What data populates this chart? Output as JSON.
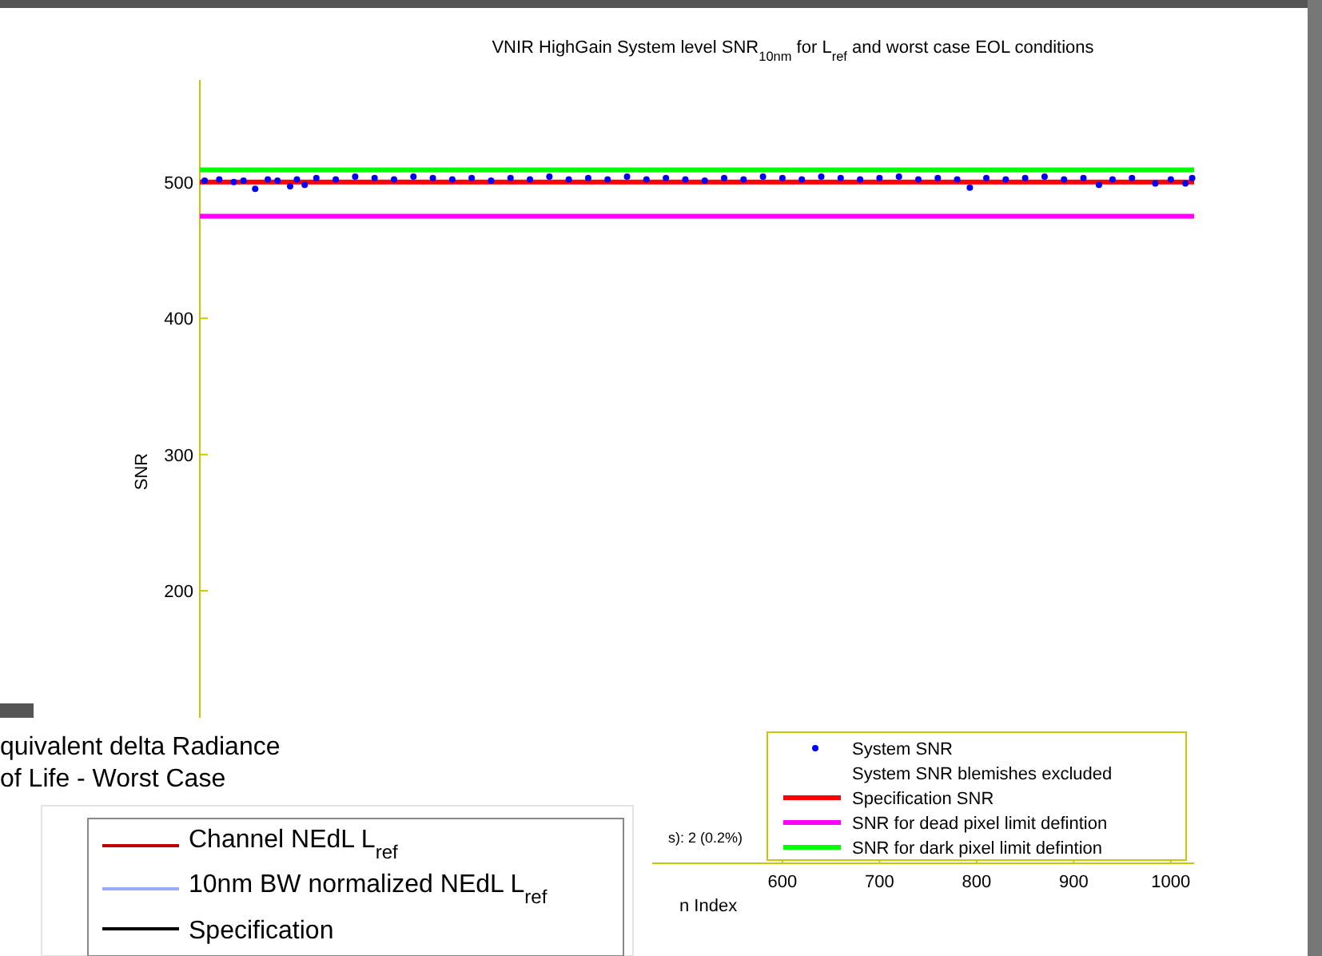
{
  "chart_data": {
    "type": "scatter",
    "title": "VNIR HighGain System level SNR$_{10nm}$ for L$_{ref}$ and worst case EOL conditions",
    "xlabel": "n Index",
    "ylabel": "SNR",
    "xlim": [
      0,
      1024
    ],
    "ylim": [
      0,
      575
    ],
    "xticks": [
      600,
      700,
      800,
      900,
      1000
    ],
    "yticks": [
      200,
      300,
      400,
      500
    ],
    "grid": false,
    "legend": "bottom right",
    "series": [
      {
        "name": "System SNR",
        "marker": "circle",
        "color": "#0000ff",
        "x": [
          5,
          20,
          35,
          45,
          57,
          70,
          80,
          93,
          100,
          108,
          120,
          140,
          160,
          180,
          200,
          220,
          240,
          260,
          280,
          300,
          320,
          340,
          360,
          380,
          400,
          420,
          440,
          460,
          480,
          500,
          520,
          540,
          560,
          580,
          600,
          620,
          640,
          660,
          680,
          700,
          720,
          740,
          760,
          780,
          793,
          810,
          830,
          850,
          870,
          890,
          910,
          926,
          940,
          960,
          984,
          1000,
          1015,
          1022
        ],
        "values": [
          501,
          502,
          500,
          501,
          495,
          502,
          501,
          497,
          502,
          498,
          503,
          502,
          504,
          503,
          502,
          504,
          503,
          502,
          503,
          501,
          503,
          502,
          504,
          502,
          503,
          502,
          504,
          502,
          503,
          502,
          501,
          503,
          502,
          504,
          503,
          502,
          504,
          503,
          502,
          503,
          504,
          502,
          503,
          502,
          496,
          503,
          502,
          503,
          504,
          502,
          503,
          498,
          502,
          503,
          499,
          502,
          499,
          503
        ]
      },
      {
        "name": "Specification SNR",
        "type": "line",
        "color": "#ff0000",
        "x": [
          0,
          1024
        ],
        "values": [
          500,
          500
        ]
      },
      {
        "name": "SNR for dead pixel limit defintion",
        "type": "line",
        "color": "#ff00ff",
        "x": [
          0,
          1024
        ],
        "values": [
          475,
          475
        ]
      },
      {
        "name": "SNR for dark pixel limit defintion",
        "type": "line",
        "color": "#00ff00",
        "x": [
          0,
          1024
        ],
        "values": [
          509,
          509
        ]
      }
    ],
    "annotations": [
      "System SNR blemishes excluded",
      "s): 2 (0.2%)",
      "quivalent delta Radiance",
      "of Life - Worst Case",
      "Channel NEdL  L$_{ref}$",
      "10nm BW normalized NEdL L$_{ref}$",
      "Specification"
    ]
  }
}
